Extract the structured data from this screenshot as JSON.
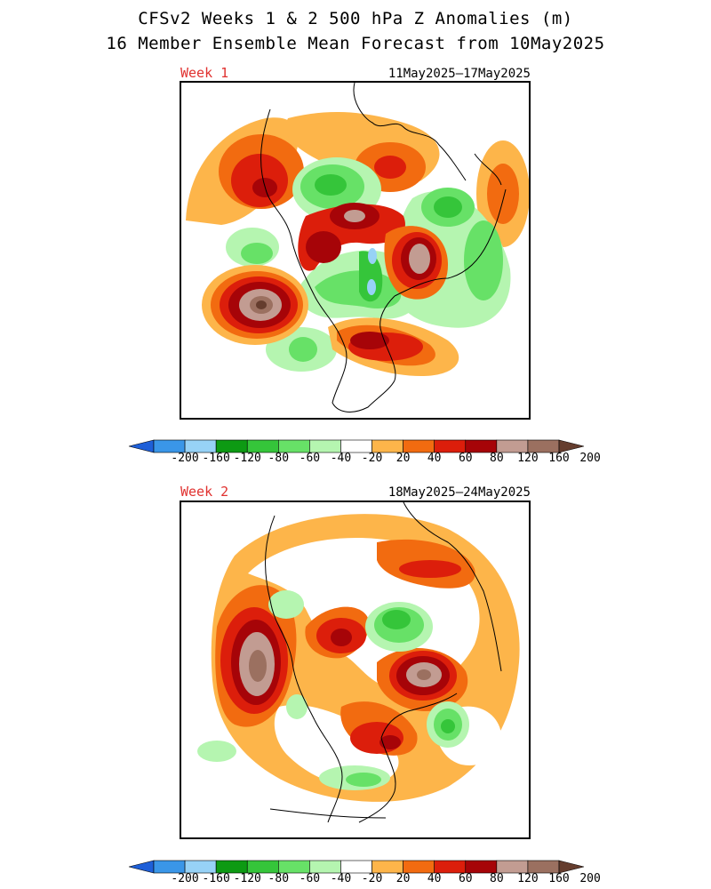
{
  "header": {
    "title_line1": "CFSv2 Weeks 1 & 2 500 hPa Z Anomalies (m)",
    "title_line2": "16 Member Ensemble Mean Forecast from 10May2025"
  },
  "panels": [
    {
      "week_label": "Week 1",
      "date_range": "11May2025–17May2025"
    },
    {
      "week_label": "Week 2",
      "date_range": "18May2025–24May2025"
    }
  ],
  "colorbar": {
    "tick_labels": [
      "-200",
      "-160",
      "-120",
      "-80",
      "-60",
      "-40",
      "-20",
      "20",
      "40",
      "60",
      "80",
      "120",
      "160",
      "200"
    ],
    "colors": [
      "#1e5fd8",
      "#3a96e8",
      "#97d2f6",
      "#0d9a13",
      "#35c53a",
      "#67e167",
      "#b5f5b0",
      "#ffffff",
      "#fdb54a",
      "#f26b10",
      "#dc1e0b",
      "#a60408",
      "#c29c92",
      "#9b7060",
      "#653d2e"
    ]
  },
  "map_projection": "north polar stereographic"
}
